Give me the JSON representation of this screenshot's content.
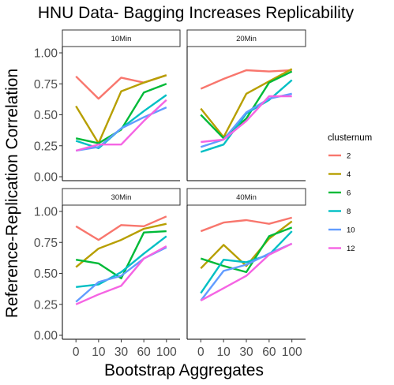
{
  "chart_data": {
    "type": "line",
    "title": "HNU Data- Bagging Increases Replicability",
    "xlabel": "Bootstrap Aggregates",
    "ylabel": "Reference-Replication Correlation",
    "categories": [
      "0",
      "10",
      "30",
      "60",
      "100"
    ],
    "yticks": [
      "0.00",
      "0.25",
      "0.50",
      "0.75",
      "1.00"
    ],
    "ylim": [
      0,
      1
    ],
    "legend": {
      "title": "clusternum",
      "placement": "right",
      "entries": [
        {
          "label": "2",
          "color": "#F8766D"
        },
        {
          "label": "4",
          "color": "#B79F00"
        },
        {
          "label": "6",
          "color": "#00BA38"
        },
        {
          "label": "8",
          "color": "#00BFC4"
        },
        {
          "label": "10",
          "color": "#619CFF"
        },
        {
          "label": "12",
          "color": "#F564E3"
        }
      ]
    },
    "panels": [
      {
        "label": "10Min",
        "series": [
          {
            "cluster": "2",
            "values": [
              0.81,
              0.63,
              0.8,
              0.76,
              0.82
            ]
          },
          {
            "cluster": "4",
            "values": [
              0.57,
              0.27,
              0.69,
              0.76,
              0.82
            ]
          },
          {
            "cluster": "6",
            "values": [
              0.31,
              0.27,
              0.38,
              0.68,
              0.75
            ]
          },
          {
            "cluster": "8",
            "values": [
              0.29,
              0.23,
              0.39,
              0.53,
              0.66
            ]
          },
          {
            "cluster": "10",
            "values": [
              0.21,
              0.24,
              0.39,
              0.48,
              0.56
            ]
          },
          {
            "cluster": "12",
            "values": [
              0.21,
              0.26,
              0.26,
              0.45,
              0.62
            ]
          }
        ]
      },
      {
        "label": "20Min",
        "series": [
          {
            "cluster": "2",
            "values": [
              0.71,
              0.79,
              0.86,
              0.85,
              0.86
            ]
          },
          {
            "cluster": "4",
            "values": [
              0.55,
              0.32,
              0.67,
              0.77,
              0.87
            ]
          },
          {
            "cluster": "6",
            "values": [
              0.5,
              0.31,
              0.47,
              0.76,
              0.85
            ]
          },
          {
            "cluster": "8",
            "values": [
              0.2,
              0.26,
              0.51,
              0.62,
              0.78
            ]
          },
          {
            "cluster": "10",
            "values": [
              0.24,
              0.3,
              0.52,
              0.63,
              0.67
            ]
          },
          {
            "cluster": "12",
            "values": [
              0.28,
              0.3,
              0.45,
              0.65,
              0.65
            ]
          }
        ]
      },
      {
        "label": "30Min",
        "series": [
          {
            "cluster": "2",
            "values": [
              0.88,
              0.77,
              0.89,
              0.88,
              0.96
            ]
          },
          {
            "cluster": "4",
            "values": [
              0.55,
              0.7,
              0.77,
              0.86,
              0.9
            ]
          },
          {
            "cluster": "6",
            "values": [
              0.61,
              0.58,
              0.46,
              0.83,
              0.84
            ]
          },
          {
            "cluster": "8",
            "values": [
              0.39,
              0.41,
              0.51,
              0.66,
              0.8
            ]
          },
          {
            "cluster": "10",
            "values": [
              0.27,
              0.43,
              0.48,
              0.62,
              0.71
            ]
          },
          {
            "cluster": "12",
            "values": [
              0.25,
              0.33,
              0.4,
              0.62,
              0.72
            ]
          }
        ]
      },
      {
        "label": "40Min",
        "series": [
          {
            "cluster": "2",
            "values": [
              0.84,
              0.91,
              0.93,
              0.9,
              0.95
            ]
          },
          {
            "cluster": "4",
            "values": [
              0.54,
              0.73,
              0.56,
              0.78,
              0.92
            ]
          },
          {
            "cluster": "6",
            "values": [
              0.62,
              0.56,
              0.51,
              0.8,
              0.87
            ]
          },
          {
            "cluster": "8",
            "values": [
              0.34,
              0.61,
              0.59,
              0.65,
              0.84
            ]
          },
          {
            "cluster": "10",
            "values": [
              0.28,
              0.52,
              0.57,
              0.66,
              0.74
            ]
          },
          {
            "cluster": "12",
            "values": [
              0.28,
              0.38,
              0.48,
              0.65,
              0.74
            ]
          }
        ]
      }
    ]
  }
}
